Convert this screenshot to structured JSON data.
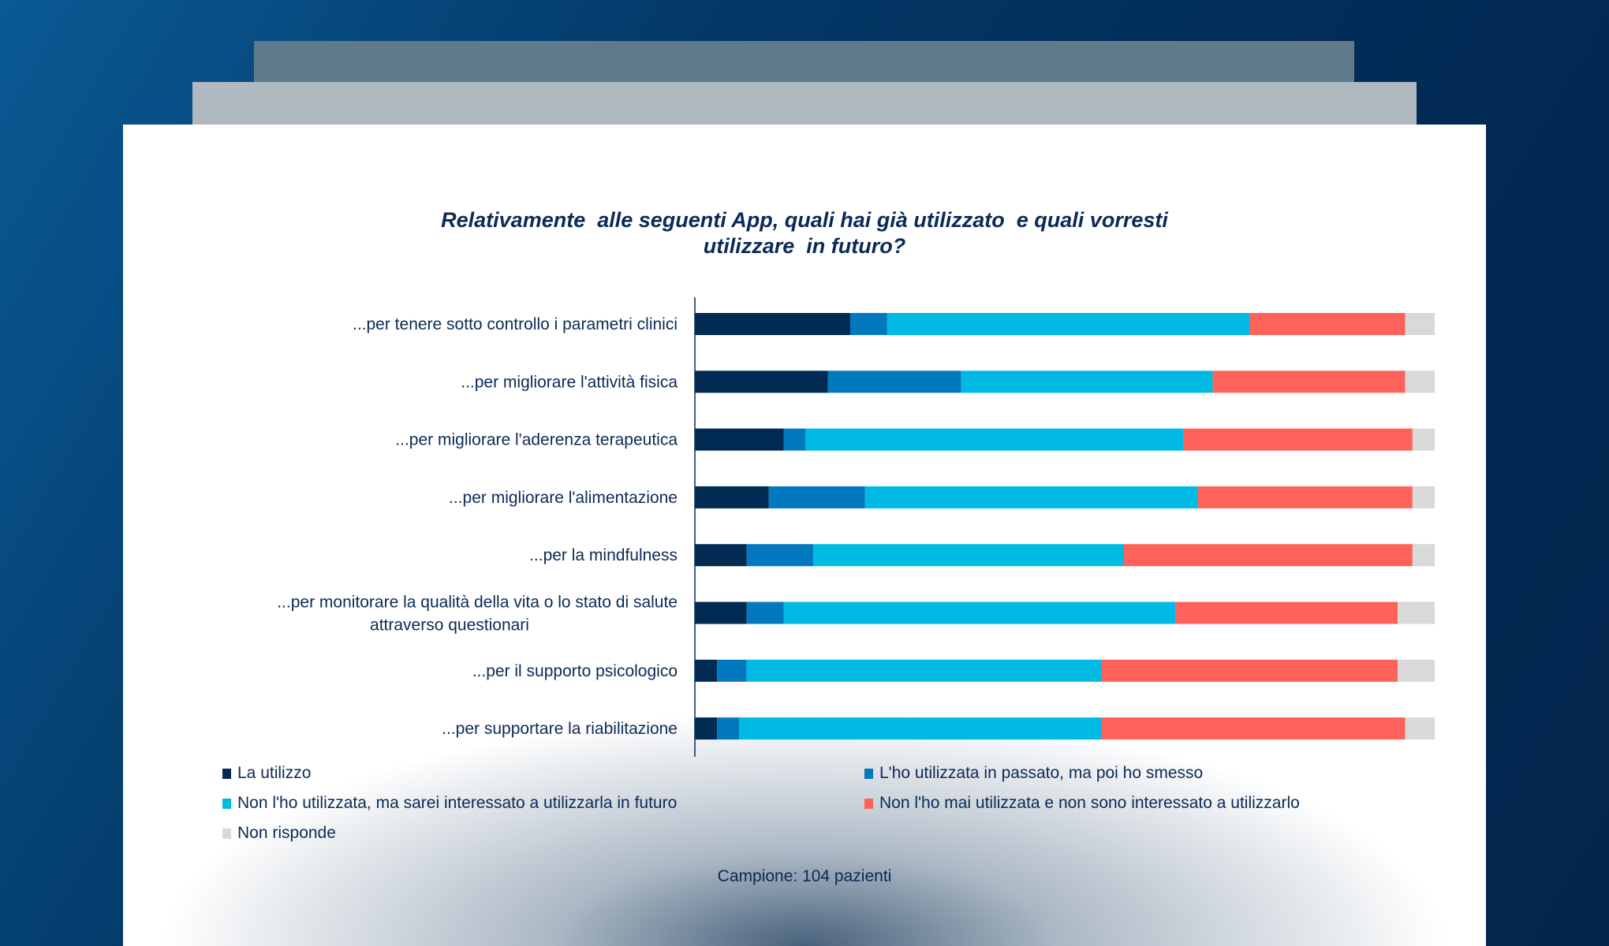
{
  "chart_data": {
    "type": "bar",
    "orientation": "horizontal",
    "stacked": "percent",
    "title": [
      "Relativamente  alle seguenti App, quali hai già utilizzato  e quali vorresti",
      "utilizzare  in futuro?"
    ],
    "categories": [
      "...per tenere sotto controllo i parametri clinici",
      "...per migliorare l'attività fisica",
      "...per migliorare l'aderenza terapeutica",
      "...per migliorare l'alimentazione",
      "...per la mindfulness",
      "...per monitorare la qualità della vita o lo stato di salute\nattraverso questionari",
      "...per il supporto psicologico",
      "...per supportare la riabilitazione"
    ],
    "series": [
      {
        "name": "La utilizzo",
        "color": "#022b53",
        "values": [
          21,
          18,
          12,
          10,
          7,
          7,
          3,
          3
        ]
      },
      {
        "name": "L'ho utilizzata in passato, ma poi ho smesso",
        "color": "#0279bf",
        "values": [
          5,
          18,
          3,
          13,
          9,
          5,
          4,
          3
        ]
      },
      {
        "name": "Non l'ho utilizzata, ma sarei interessato a utilizzarla in futuro",
        "color": "#00bae4",
        "values": [
          49,
          34,
          51,
          45,
          42,
          53,
          48,
          49
        ]
      },
      {
        "name": "Non l'ho mai utilizzata e non sono interessato a utilizzarlo",
        "color": "#ff625a",
        "values": [
          21,
          26,
          31,
          29,
          39,
          30,
          40,
          41
        ]
      },
      {
        "name": "Non risponde",
        "color": "#d9d9d9",
        "values": [
          4,
          4,
          3,
          3,
          3,
          5,
          5,
          4
        ]
      }
    ],
    "xlim": [
      0,
      100
    ],
    "grid": false,
    "legend_position": "bottom"
  },
  "footnote": "Campione: 104 pazienti"
}
